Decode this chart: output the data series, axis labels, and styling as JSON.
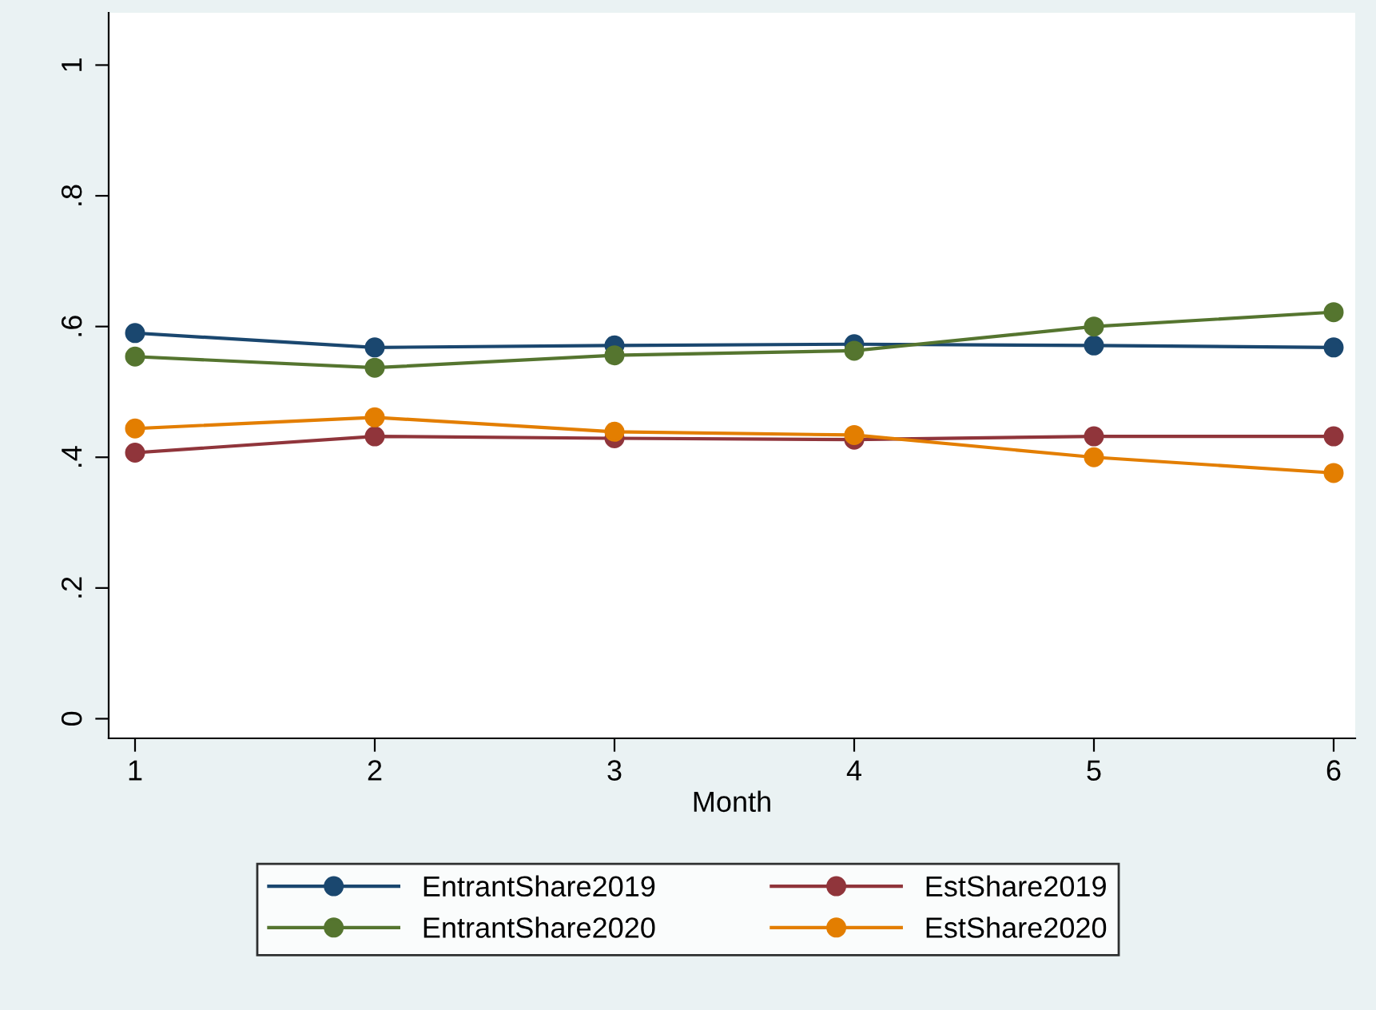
{
  "chart_data": {
    "type": "line",
    "xlabel": "Month",
    "x": [
      1,
      2,
      3,
      4,
      5,
      6
    ],
    "series": [
      {
        "name": "EntrantShare2019",
        "color": "#1a476f",
        "values": [
          0.59,
          0.568,
          0.571,
          0.573,
          0.571,
          0.568
        ]
      },
      {
        "name": "EstShare2019",
        "color": "#90353b",
        "values": [
          0.407,
          0.432,
          0.429,
          0.427,
          0.432,
          0.432
        ]
      },
      {
        "name": "EntrantShare2020",
        "color": "#55752f",
        "values": [
          0.554,
          0.537,
          0.556,
          0.563,
          0.6,
          0.622
        ]
      },
      {
        "name": "EstShare2020",
        "color": "#e37e00",
        "values": [
          0.444,
          0.461,
          0.439,
          0.434,
          0.4,
          0.376
        ]
      }
    ],
    "xlim": [
      0.89,
      6.09
    ],
    "xticks": [
      1,
      2,
      3,
      4,
      5,
      6
    ],
    "ylim": [
      -0.03,
      1.08
    ],
    "yticks": [
      0,
      {
        "value": 0.2,
        "label": ".2"
      },
      {
        "value": 0.4,
        "label": ".4"
      },
      {
        "value": 0.6,
        "label": ".6"
      },
      {
        "value": 0.8,
        "label": ".8"
      },
      1
    ],
    "marker": "circle",
    "line_style": "solid",
    "grid": false,
    "legend": "bottom"
  }
}
